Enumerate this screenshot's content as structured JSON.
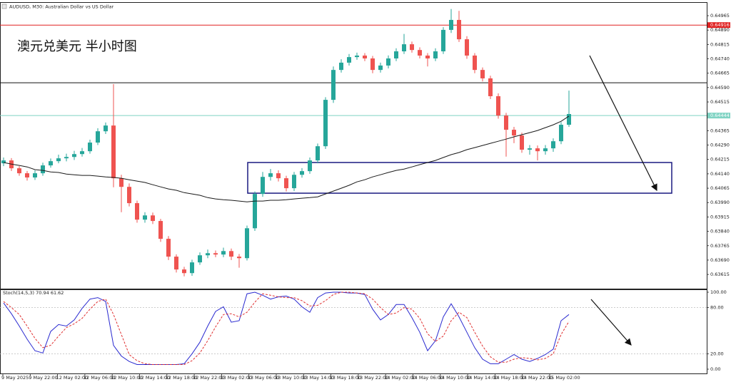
{
  "chart_data": {
    "type": "candlestick",
    "title": "AUDUSD, M30:  Australian Dollar vs US Dollar",
    "annotation": "澳元兑美元 半小时图",
    "up_color": "#26a69a",
    "down_color": "#ef5350",
    "time_labels": [
      "9 May 2025",
      "9 May 22:00",
      "12 May 02:00",
      "12 May 06:00",
      "12 May 10:00",
      "12 May 14:00",
      "12 May 18:00",
      "12 May 22:00",
      "13 May 02:00",
      "13 May 06:00",
      "13 May 10:00",
      "13 May 14:00",
      "13 May 18:00",
      "13 May 22:00",
      "14 May 02:00",
      "14 May 06:00",
      "14 May 10:00",
      "14 May 14:00",
      "14 May 18:00",
      "14 May 22:00",
      "15 May 02:00"
    ],
    "candles": {
      "open": [
        0.64195,
        0.6421,
        0.64169,
        0.64143,
        0.64121,
        0.64143,
        0.64184,
        0.64206,
        0.64221,
        0.64228,
        0.64243,
        0.64258,
        0.64303,
        0.64362,
        0.64392,
        0.64117,
        0.64072,
        0.63987,
        0.63901,
        0.63923,
        0.63894,
        0.63801,
        0.63708,
        0.63641,
        0.63622,
        0.63678,
        0.63715,
        0.63726,
        0.63719,
        0.63737,
        0.63708,
        0.637,
        0.63856,
        0.64035,
        0.64124,
        0.64143,
        0.64117,
        0.64065,
        0.64135,
        0.64154,
        0.6421,
        0.64284,
        0.64526,
        0.64682,
        0.6472,
        0.64749,
        0.64757,
        0.64742,
        0.64682,
        0.64705,
        0.64742,
        0.64779,
        0.64816,
        0.64786,
        0.64757,
        0.64742,
        0.64779,
        0.64891,
        0.64943,
        0.64842,
        0.64757,
        0.64682,
        0.64638,
        0.64545,
        0.64444,
        0.6437,
        0.6434,
        0.64266,
        0.64273,
        0.64258,
        0.64273,
        0.6431,
        0.64396
      ],
      "high": [
        0.64225,
        0.64222,
        0.6418,
        0.64155,
        0.64158,
        0.64198,
        0.6422,
        0.6424,
        0.64245,
        0.6426,
        0.64275,
        0.64318,
        0.64378,
        0.64408,
        0.64608,
        0.64135,
        0.6409,
        0.64,
        0.6394,
        0.63938,
        0.63905,
        0.63815,
        0.6372,
        0.63655,
        0.63692,
        0.6373,
        0.63745,
        0.6374,
        0.63755,
        0.6375,
        0.63722,
        0.6387,
        0.64048,
        0.6415,
        0.64165,
        0.64158,
        0.6413,
        0.6415,
        0.6417,
        0.64225,
        0.64298,
        0.6454,
        0.647,
        0.64738,
        0.64765,
        0.64772,
        0.6477,
        0.64755,
        0.6472,
        0.64758,
        0.64795,
        0.6487,
        0.6483,
        0.648,
        0.6477,
        0.64795,
        0.64905,
        0.65,
        0.6499,
        0.64858,
        0.6477,
        0.64695,
        0.64652,
        0.6456,
        0.64458,
        0.64385,
        0.64355,
        0.6429,
        0.64288,
        0.6429,
        0.64325,
        0.6441,
        0.64574
      ],
      "low": [
        0.6418,
        0.64155,
        0.6413,
        0.64105,
        0.64108,
        0.6413,
        0.64172,
        0.64195,
        0.64205,
        0.64212,
        0.6423,
        0.64245,
        0.6429,
        0.64348,
        0.6407,
        0.6394,
        0.6397,
        0.63885,
        0.63885,
        0.63878,
        0.63785,
        0.6369,
        0.63625,
        0.63605,
        0.63608,
        0.63665,
        0.637,
        0.63705,
        0.63705,
        0.6369,
        0.6365,
        0.63688,
        0.63842,
        0.6402,
        0.64105,
        0.641,
        0.64048,
        0.6405,
        0.6412,
        0.6414,
        0.64195,
        0.6427,
        0.6451,
        0.64668,
        0.64705,
        0.64735,
        0.64728,
        0.64665,
        0.64668,
        0.6469,
        0.64728,
        0.64765,
        0.64772,
        0.64742,
        0.647,
        0.64728,
        0.64765,
        0.64875,
        0.64828,
        0.6474,
        0.64665,
        0.64622,
        0.6453,
        0.64428,
        0.6423,
        0.643,
        0.6425,
        0.6424,
        0.6421,
        0.6424,
        0.64255,
        0.64295,
        0.64385
      ],
      "close": [
        0.6421,
        0.64169,
        0.64143,
        0.64121,
        0.64143,
        0.64184,
        0.64206,
        0.64221,
        0.64228,
        0.64243,
        0.64258,
        0.64303,
        0.64362,
        0.64392,
        0.64117,
        0.64072,
        0.63987,
        0.63901,
        0.63923,
        0.63894,
        0.63801,
        0.63708,
        0.63641,
        0.63622,
        0.63678,
        0.63715,
        0.63726,
        0.63719,
        0.63737,
        0.63708,
        0.637,
        0.63856,
        0.64035,
        0.64124,
        0.64143,
        0.64117,
        0.64065,
        0.64135,
        0.64154,
        0.6421,
        0.64284,
        0.64526,
        0.64682,
        0.6472,
        0.64749,
        0.64757,
        0.64742,
        0.64682,
        0.64705,
        0.64742,
        0.64779,
        0.64816,
        0.64786,
        0.64757,
        0.64742,
        0.64779,
        0.64891,
        0.64943,
        0.64842,
        0.64757,
        0.64682,
        0.64638,
        0.64545,
        0.64444,
        0.6437,
        0.6434,
        0.64266,
        0.64273,
        0.64258,
        0.64273,
        0.6431,
        0.64396,
        0.64452
      ]
    },
    "ma": {
      "color": "#1a1a1a",
      "values": [
        0.64199,
        0.64191,
        0.64184,
        0.64176,
        0.64162,
        0.64158,
        0.6415,
        0.64147,
        0.64139,
        0.64135,
        0.64132,
        0.64132,
        0.64128,
        0.64124,
        0.64121,
        0.64117,
        0.64109,
        0.64102,
        0.64095,
        0.64083,
        0.64072,
        0.64061,
        0.64054,
        0.64042,
        0.64035,
        0.64028,
        0.64016,
        0.64009,
        0.64005,
        0.64002,
        0.63998,
        0.63994,
        0.63998,
        0.63998,
        0.64002,
        0.64002,
        0.64005,
        0.64009,
        0.64013,
        0.64016,
        0.6402,
        0.64035,
        0.6405,
        0.64065,
        0.6408,
        0.64098,
        0.64109,
        0.64124,
        0.64135,
        0.64147,
        0.64158,
        0.64165,
        0.64176,
        0.64188,
        0.64199,
        0.6421,
        0.64225,
        0.6424,
        0.64251,
        0.64266,
        0.64277,
        0.64288,
        0.64299,
        0.6431,
        0.64321,
        0.64333,
        0.64344,
        0.64355,
        0.64366,
        0.64381,
        0.64396,
        0.64414,
        0.64441
      ]
    },
    "ylim": [
      0.63541,
      0.65032
    ],
    "yticks": [
      0.64965,
      {
        "value": 0.6489,
        "label": "0.64890"
      },
      0.64815,
      {
        "value": 0.6474,
        "label": "0.64740"
      },
      0.64665,
      {
        "value": 0.6459,
        "label": "0.64590"
      },
      0.64515,
      0.64365,
      {
        "value": 0.6429,
        "label": "0.64290"
      },
      0.64215,
      {
        "value": 0.6414,
        "label": "0.64140"
      },
      0.64065,
      {
        "value": 0.6399,
        "label": "0.63990"
      },
      0.63915,
      {
        "value": 0.6384,
        "label": "0.63840"
      },
      0.63765,
      {
        "value": 0.6369,
        "label": "0.63690"
      },
      0.63615
    ],
    "price_lines": [
      {
        "value": 0.64916,
        "color": "#e02020",
        "labeled": true
      },
      {
        "value": 0.64615,
        "color": "#111111",
        "labeled": false
      },
      {
        "value": 0.64444,
        "color": "#7fd3c3",
        "labeled": true
      }
    ],
    "box": {
      "top": 0.64199,
      "bottom": 0.64039,
      "color": "#1a1a80"
    },
    "stoch": {
      "label": "Stoch(14,5,3) 70.94 61.62",
      "ylim": [
        0,
        100
      ],
      "yticks": [
        {
          "value": 100,
          "label": "100.00"
        },
        {
          "value": 80,
          "label": "80.00"
        },
        {
          "value": 20,
          "label": "20.00"
        },
        {
          "value": 0,
          "label": "0.00"
        }
      ],
      "series": [
        {
          "color": "#2a2ad0",
          "values": [
            86,
            72,
            56,
            39,
            24,
            21,
            49,
            58,
            56,
            64,
            79,
            91,
            93,
            88,
            31,
            17,
            10,
            6,
            6,
            6,
            6,
            6,
            6,
            7,
            20,
            35,
            56,
            75,
            81,
            61,
            63,
            98,
            100,
            96,
            91,
            94,
            95,
            91,
            81,
            74,
            93,
            99,
            100,
            100,
            99,
            99,
            97,
            78,
            64,
            71,
            84,
            84,
            67,
            48,
            24,
            37,
            68,
            85,
            68,
            48,
            28,
            13,
            7,
            7,
            13,
            19,
            13,
            10,
            14,
            19,
            26,
            63,
            71
          ]
        },
        {
          "color": "#e03030",
          "dashed": true,
          "values": [
            88,
            80,
            71,
            56,
            40,
            28,
            31,
            43,
            54,
            59,
            66,
            78,
            88,
            91,
            71,
            45,
            19,
            11,
            7,
            6,
            6,
            6,
            6,
            6,
            11,
            21,
            37,
            55,
            71,
            72,
            68,
            74,
            87,
            98,
            96,
            94,
            93,
            93,
            89,
            82,
            83,
            89,
            97,
            100,
            100,
            99,
            98,
            91,
            80,
            71,
            73,
            80,
            78,
            66,
            46,
            36,
            43,
            63,
            74,
            67,
            48,
            30,
            16,
            9,
            9,
            13,
            15,
            14,
            12,
            14,
            20,
            45,
            62
          ]
        }
      ]
    }
  }
}
